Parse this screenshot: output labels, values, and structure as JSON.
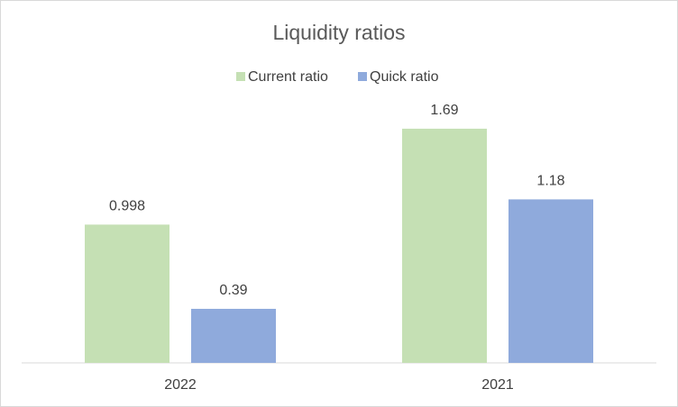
{
  "chart_data": {
    "type": "bar",
    "title": "Liquidity ratios",
    "categories": [
      "2022",
      "2021"
    ],
    "series": [
      {
        "name": "Current ratio",
        "color": "#c5e0b4",
        "values": [
          0.998,
          1.69
        ]
      },
      {
        "name": "Quick ratio",
        "color": "#8faadc",
        "values": [
          0.39,
          1.18
        ]
      }
    ],
    "ylim": [
      0,
      1.8
    ]
  }
}
